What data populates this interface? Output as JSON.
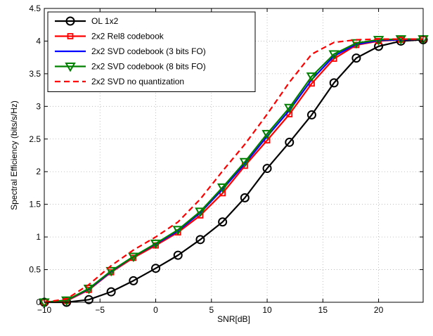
{
  "chart_data": {
    "type": "line",
    "xlabel": "SNR[dB]",
    "ylabel": "Spectral Efficiency (bits/s/Hz)",
    "xlim": [
      -10,
      24
    ],
    "ylim": [
      0,
      4.5
    ],
    "xticks": [
      -10,
      -5,
      0,
      5,
      10,
      15,
      20
    ],
    "yticks": [
      0,
      0.5,
      1,
      1.5,
      2,
      2.5,
      3,
      3.5,
      4,
      4.5
    ],
    "grid": true,
    "legend_position": "top-left",
    "x": [
      -10,
      -8,
      -6,
      -4,
      -2,
      0,
      2,
      4,
      6,
      8,
      10,
      12,
      14,
      16,
      18,
      20,
      22,
      24
    ],
    "series": [
      {
        "name": "OL 1x2",
        "color": "#000000",
        "line": "solid",
        "marker": "circle",
        "values": [
          0.0,
          0.0,
          0.04,
          0.16,
          0.33,
          0.52,
          0.72,
          0.96,
          1.23,
          1.6,
          2.05,
          2.45,
          2.87,
          3.36,
          3.74,
          3.92,
          4.0,
          4.02
        ]
      },
      {
        "name": "2x2 Rel8 codebook",
        "color": "#ff0000",
        "line": "solid",
        "marker": "square",
        "values": [
          0.0,
          0.02,
          0.19,
          0.46,
          0.68,
          0.87,
          1.07,
          1.33,
          1.67,
          2.09,
          2.48,
          2.88,
          3.35,
          3.73,
          3.94,
          4.0,
          4.02,
          4.03
        ]
      },
      {
        "name": "2x2 SVD codebook (3 bits FO)",
        "color": "#0000ff",
        "line": "solid",
        "marker": "none",
        "values": [
          0.0,
          0.03,
          0.2,
          0.47,
          0.7,
          0.89,
          1.09,
          1.37,
          1.73,
          2.12,
          2.54,
          2.94,
          3.41,
          3.77,
          3.95,
          4.01,
          4.02,
          4.03
        ]
      },
      {
        "name": "2x2 SVD codebook (8 bits FO)",
        "color": "#008000",
        "line": "solid",
        "marker": "triangle-down",
        "values": [
          0.0,
          0.03,
          0.21,
          0.48,
          0.7,
          0.9,
          1.11,
          1.39,
          1.76,
          2.15,
          2.58,
          2.98,
          3.46,
          3.8,
          3.97,
          4.02,
          4.03,
          4.03
        ]
      },
      {
        "name": "2x2 SVD no quantization",
        "color": "#ff0000",
        "line": "dashed",
        "marker": "none",
        "values": [
          0.0,
          0.05,
          0.27,
          0.56,
          0.8,
          1.0,
          1.23,
          1.58,
          2.01,
          2.42,
          2.88,
          3.37,
          3.8,
          3.98,
          4.02,
          4.03,
          4.03,
          4.03
        ]
      }
    ]
  }
}
